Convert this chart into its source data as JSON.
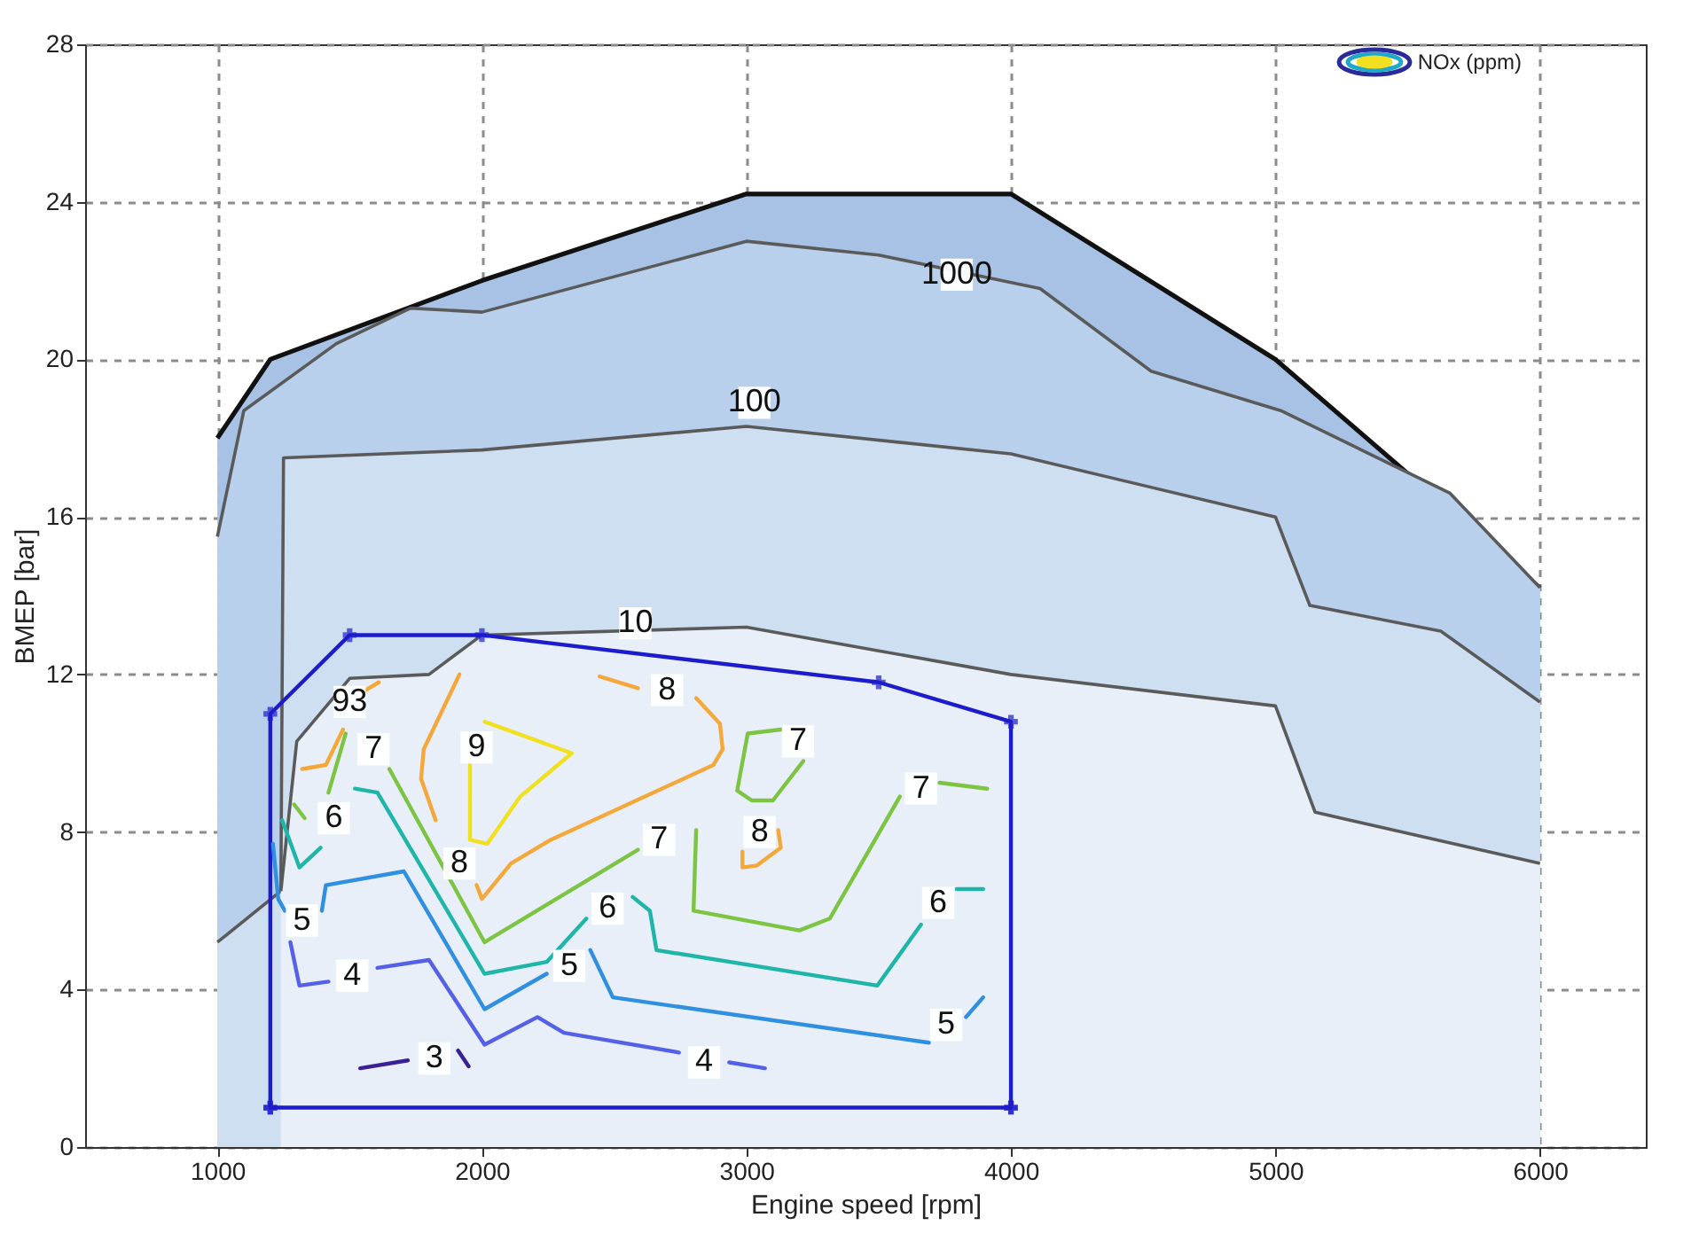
{
  "chart_data": {
    "type": "line",
    "xlabel": "Engine speed [rpm]",
    "ylabel": "BMEP [bar]",
    "legend_title": "NOx (ppm)",
    "grid": true,
    "xlim": [
      500,
      6400
    ],
    "xticks": [
      1000,
      2000,
      3000,
      4000,
      5000,
      6000
    ],
    "ylim": [
      0,
      28
    ],
    "yticks": [
      0,
      4,
      8,
      12,
      16,
      20,
      24,
      28
    ],
    "series": [
      {
        "type": "area",
        "color": "#a7c2e4",
        "x": [
          1000,
          1200,
          2000,
          3000,
          4000,
          5000,
          6000
        ],
        "values": [
          18,
          20,
          22,
          24.2,
          24.2,
          20,
          14.2
        ]
      },
      {
        "type": "area",
        "color": "#b9d0ec",
        "x": [
          1000,
          1100,
          1450,
          1730,
          2000,
          3000,
          3500,
          4110,
          4530,
          5020,
          5660,
          6000
        ],
        "values": [
          15.5,
          18.7,
          20.4,
          21.3,
          21.2,
          23.0,
          22.65,
          21.8,
          19.7,
          18.7,
          16.6,
          14.2
        ]
      },
      {
        "type": "area",
        "color": "#cfdff2",
        "x": [
          1000,
          1240,
          1250,
          2000,
          3000,
          4000,
          5000,
          5130,
          5625,
          6000
        ],
        "values": [
          5.2,
          6.5,
          17.5,
          17.7,
          18.3,
          17.6,
          16.0,
          13.75,
          13.1,
          11.3
        ]
      },
      {
        "type": "area",
        "color": "#e8eff8",
        "x": [
          1240,
          1300,
          1500,
          1800,
          2000,
          3000,
          3500,
          4000,
          5000,
          5150,
          6000
        ],
        "values": [
          6.5,
          10.3,
          11.9,
          12.0,
          13.0,
          13.2,
          12.6,
          12.0,
          11.2,
          8.5,
          7.2
        ]
      },
      {
        "color": "#1c1ccc",
        "marker": "cross",
        "x": [
          1200,
          1200,
          1500,
          2000,
          3500,
          4000,
          4000,
          null,
          4000,
          1200
        ],
        "values": [
          1,
          11,
          13,
          13,
          11.8,
          10.8,
          1,
          null,
          1,
          1
        ]
      },
      {
        "color": "#3b1f94",
        "x": [
          1540,
          1720,
          1800,
          1910,
          1950
        ],
        "values": [
          2.0,
          2.2,
          null,
          2.45,
          2.05
        ]
      },
      {
        "color": "#5560e8",
        "x": [
          1276,
          1310,
          1420,
          1500,
          1605,
          1800,
          2010,
          2210,
          2310,
          2745,
          2840,
          2935,
          3070
        ],
        "values": [
          5.2,
          4.1,
          4.2,
          null,
          4.55,
          4.75,
          2.6,
          3.3,
          2.9,
          2.4,
          null,
          2.15,
          2.0
        ]
      },
      {
        "color": "#2f8fe0",
        "x": [
          1210,
          1230,
          1255,
          1300,
          1395,
          1410,
          1705,
          2010,
          2245,
          2330,
          2410,
          2495,
          3690,
          3750,
          3830,
          3895
        ],
        "values": [
          7.7,
          6.3,
          6.0,
          null,
          6.0,
          6.65,
          7.0,
          3.5,
          4.4,
          null,
          5.0,
          3.8,
          2.65,
          null,
          3.3,
          3.8
        ]
      },
      {
        "color": "#1fb5a8",
        "x": [
          1245,
          1310,
          1390,
          1440,
          1520,
          1605,
          2010,
          2245,
          2395,
          2475,
          2570,
          2635,
          2660,
          3495,
          3660,
          3725,
          3795,
          3895
        ],
        "values": [
          8.3,
          7.1,
          7.6,
          null,
          9.1,
          9.0,
          4.4,
          4.7,
          5.8,
          null,
          6.35,
          6.0,
          5.0,
          4.1,
          5.65,
          null,
          6.55,
          6.55
        ]
      },
      {
        "color": "#7cc442",
        "x": [
          1290,
          1330,
          1380,
          1420,
          1485,
          1590,
          1650,
          2010,
          2590,
          2670,
          2810,
          2800,
          3200,
          3315,
          3580,
          3660,
          3730,
          3910,
          3900,
          3130,
          3005,
          2965,
          3020,
          3100,
          3215
        ],
        "values": [
          8.7,
          8.35,
          null,
          9.0,
          10.5,
          null,
          9.6,
          5.2,
          7.55,
          null,
          8.05,
          6.0,
          5.5,
          5.8,
          8.9,
          null,
          9.25,
          9.1,
          null,
          10.6,
          10.5,
          9.05,
          8.8,
          8.8,
          9.8
        ]
      },
      {
        "color": "#f5a83a",
        "x": [
          1320,
          1410,
          1475,
          1500,
          1560,
          1610,
          1700,
          1915,
          1780,
          1770,
          1825,
          1900,
          1980,
          2000,
          2110,
          2260,
          2875,
          2910,
          2900,
          2810,
          2700,
          2590,
          2445,
          2700,
          2985,
          2985,
          3000,
          3120,
          3130,
          3040,
          2985
        ],
        "values": [
          9.6,
          9.7,
          10.6,
          null,
          11.6,
          11.8,
          null,
          12.0,
          10.1,
          9.35,
          8.3,
          null,
          6.65,
          6.3,
          7.2,
          7.8,
          9.7,
          10.1,
          10.75,
          11.4,
          null,
          11.65,
          11.95,
          null,
          7.1,
          7.5,
          null,
          8.05,
          7.6,
          7.15,
          7.1
        ]
      },
      {
        "color": "#f0e020",
        "x": [
          2010,
          2340,
          2145,
          2020,
          1955,
          1955
        ],
        "values": [
          10.8,
          10.0,
          8.9,
          7.7,
          7.8,
          9.7
        ]
      }
    ],
    "annotations": [
      {
        "text": "1000",
        "x": 3795,
        "y": 22.15
      },
      {
        "text": "100",
        "x": 3030,
        "y": 18.9
      },
      {
        "text": "10",
        "x": 2580,
        "y": 13.3
      },
      {
        "text": "3",
        "x": 1820,
        "y": 2.25
      },
      {
        "text": "4",
        "x": 1510,
        "y": 4.35
      },
      {
        "text": "4",
        "x": 2840,
        "y": 2.15
      },
      {
        "text": "5",
        "x": 1320,
        "y": 5.75
      },
      {
        "text": "5",
        "x": 2330,
        "y": 4.6
      },
      {
        "text": "5",
        "x": 3755,
        "y": 3.1
      },
      {
        "text": "6",
        "x": 1440,
        "y": 8.35
      },
      {
        "text": "6",
        "x": 2475,
        "y": 6.05
      },
      {
        "text": "6",
        "x": 3725,
        "y": 6.2
      },
      {
        "text": "7",
        "x": 1590,
        "y": 10.1
      },
      {
        "text": "7",
        "x": 2670,
        "y": 7.8
      },
      {
        "text": "7",
        "x": 3195,
        "y": 10.3
      },
      {
        "text": "7",
        "x": 3660,
        "y": 9.1
      },
      {
        "text": "8",
        "x": 1915,
        "y": 7.2
      },
      {
        "text": "8",
        "x": 2700,
        "y": 11.6
      },
      {
        "text": "8",
        "x": 3050,
        "y": 8.0
      },
      {
        "text": "9",
        "x": 1980,
        "y": 10.15
      },
      {
        "text": "93",
        "x": 1500,
        "y": 11.3
      }
    ]
  }
}
